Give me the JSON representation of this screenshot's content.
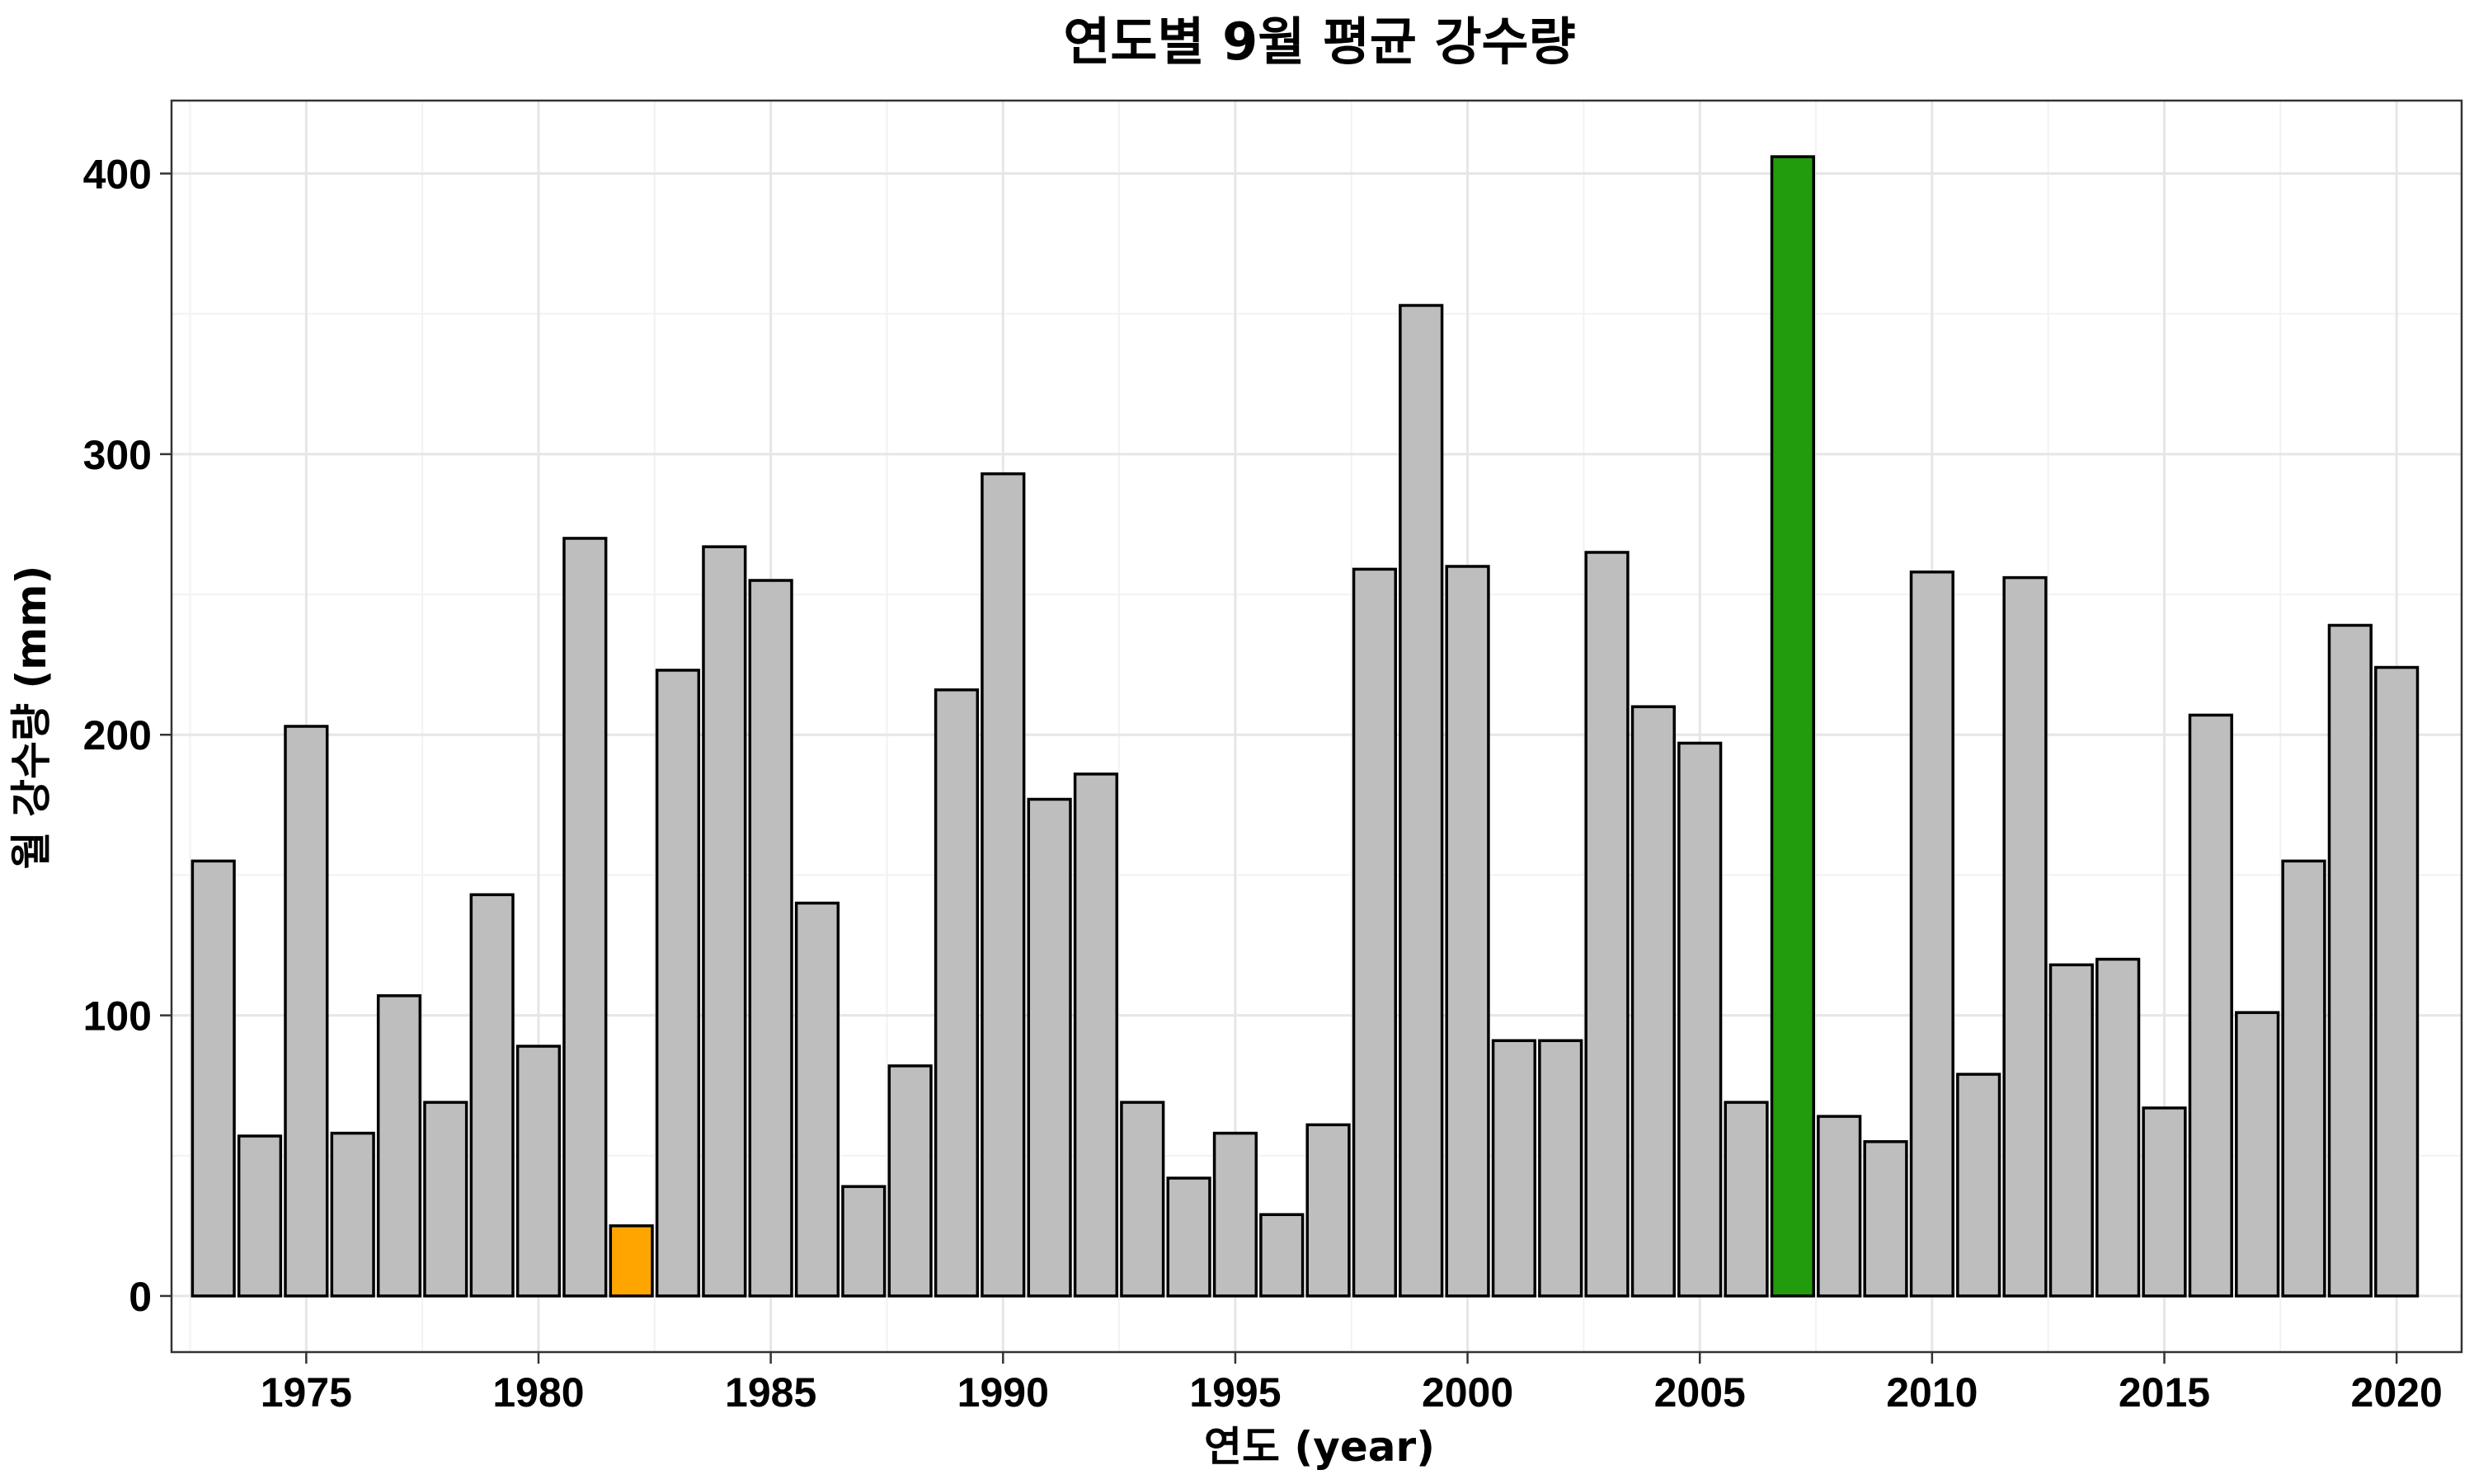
{
  "chart_data": {
    "type": "bar",
    "title": "연도별 9월 평균 강수량",
    "xlabel": "연도 (year)",
    "ylabel": "월 강수량 (mm)",
    "x": [
      1973,
      1974,
      1975,
      1976,
      1977,
      1978,
      1979,
      1980,
      1981,
      1982,
      1983,
      1984,
      1985,
      1986,
      1987,
      1988,
      1989,
      1990,
      1991,
      1992,
      1993,
      1994,
      1995,
      1996,
      1997,
      1998,
      1999,
      2000,
      2001,
      2002,
      2003,
      2004,
      2005,
      2006,
      2007,
      2008,
      2009,
      2010,
      2011,
      2012,
      2013,
      2014,
      2015,
      2016,
      2017,
      2018,
      2019,
      2020
    ],
    "values": [
      155,
      57,
      203,
      58,
      107,
      69,
      143,
      89,
      270,
      25,
      223,
      267,
      255,
      140,
      39,
      82,
      216,
      293,
      177,
      186,
      69,
      42,
      58,
      29,
      61,
      259,
      353,
      260,
      91,
      91,
      265,
      210,
      197,
      69,
      406,
      64,
      55,
      258,
      79,
      256,
      118,
      120,
      67,
      207,
      101,
      155,
      239,
      224
    ],
    "colors": {
      "default": "#bebebe",
      "min": "#ffa500",
      "max": "#229c0c",
      "border": "#000000"
    },
    "highlight": {
      "min_year": 1982,
      "max_year": 2007
    },
    "ylim": [
      -20,
      426
    ],
    "xlim": [
      1972.1,
      2021.4
    ],
    "y_ticks": [
      0,
      100,
      200,
      300,
      400
    ],
    "x_ticks": [
      1975,
      1980,
      1985,
      1990,
      1995,
      2000,
      2005,
      2010,
      2015,
      2020
    ],
    "grid": true,
    "legend": "none"
  }
}
